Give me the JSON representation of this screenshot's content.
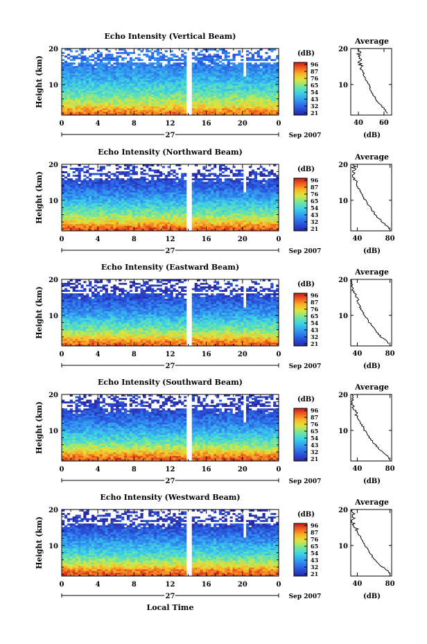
{
  "chart_data": [
    {
      "type": "heatmap",
      "title": "Echo Intensity (Vertical Beam)",
      "ylabel": "Height (km)",
      "x_ticks": [
        "0",
        "4",
        "8",
        "12",
        "16",
        "20",
        "0"
      ],
      "xlim": [
        0,
        24
      ],
      "y_ticks": [
        "10",
        "20"
      ],
      "ylim": [
        1.5,
        20
      ],
      "date_label": "27",
      "month_label": "Sep 2007",
      "colorbar": {
        "unit": "(dB)",
        "ticks": [
          "96",
          "87",
          "76",
          "65",
          "54",
          "43",
          "32",
          "21"
        ]
      },
      "average_profile": {
        "title": "Average",
        "x_ticks": [
          "40",
          "60"
        ],
        "xlim": [
          34,
          66
        ],
        "xlabel": "(dB)",
        "y_ticks": [
          "10",
          "20"
        ],
        "height_km": [
          2,
          3,
          4,
          5,
          6,
          7,
          8,
          9,
          10,
          11,
          12,
          13,
          14,
          15,
          16,
          17,
          18,
          19,
          20
        ],
        "db": [
          63,
          61,
          58,
          55,
          54,
          52,
          50,
          49,
          48,
          46,
          45,
          44,
          43,
          42,
          41,
          41,
          40,
          41,
          40
        ]
      }
    },
    {
      "type": "heatmap",
      "title": "Echo Intensity (Northward Beam)",
      "ylabel": "Height (km)",
      "x_ticks": [
        "0",
        "4",
        "8",
        "12",
        "16",
        "20",
        "0"
      ],
      "xlim": [
        0,
        24
      ],
      "y_ticks": [
        "10",
        "20"
      ],
      "ylim": [
        1.5,
        20
      ],
      "date_label": "27",
      "month_label": "Sep 2007",
      "colorbar": {
        "unit": "(dB)",
        "ticks": [
          "96",
          "87",
          "76",
          "65",
          "54",
          "43",
          "32",
          "21"
        ]
      },
      "average_profile": {
        "title": "Average",
        "x_ticks": [
          "40",
          "80"
        ],
        "xlim": [
          32,
          82
        ],
        "xlabel": "(dB)",
        "y_ticks": [
          "10",
          "20"
        ],
        "height_km": [
          2,
          3,
          4,
          5,
          6,
          7,
          8,
          9,
          10,
          11,
          12,
          13,
          14,
          15,
          16,
          17,
          18,
          19,
          20
        ],
        "db": [
          80,
          76,
          70,
          66,
          62,
          59,
          56,
          53,
          50,
          47,
          45,
          42,
          40,
          38,
          37,
          36,
          35,
          36,
          35
        ]
      }
    },
    {
      "type": "heatmap",
      "title": "Echo Intensity (Eastward Beam)",
      "ylabel": "Height (km)",
      "x_ticks": [
        "0",
        "4",
        "8",
        "12",
        "16",
        "20",
        "0"
      ],
      "xlim": [
        0,
        24
      ],
      "y_ticks": [
        "10",
        "20"
      ],
      "ylim": [
        1.5,
        20
      ],
      "date_label": "27",
      "month_label": "Sep 2007",
      "colorbar": {
        "unit": "(dB)",
        "ticks": [
          "96",
          "87",
          "76",
          "65",
          "54",
          "43",
          "32",
          "21"
        ]
      },
      "average_profile": {
        "title": "Average",
        "x_ticks": [
          "40",
          "80"
        ],
        "xlim": [
          32,
          82
        ],
        "xlabel": "(dB)",
        "y_ticks": [
          "10",
          "20"
        ],
        "height_km": [
          2,
          3,
          4,
          5,
          6,
          7,
          8,
          9,
          10,
          11,
          12,
          13,
          14,
          15,
          16,
          17,
          18,
          19,
          20
        ],
        "db": [
          79,
          75,
          69,
          65,
          61,
          58,
          55,
          52,
          49,
          46,
          44,
          42,
          40,
          38,
          36,
          35,
          34,
          35,
          34
        ]
      }
    },
    {
      "type": "heatmap",
      "title": "Echo Intensity (Southward Beam)",
      "ylabel": "Height (km)",
      "x_ticks": [
        "0",
        "4",
        "8",
        "12",
        "16",
        "20",
        "0"
      ],
      "xlim": [
        0,
        24
      ],
      "y_ticks": [
        "10",
        "20"
      ],
      "ylim": [
        1.5,
        20
      ],
      "date_label": "27",
      "month_label": "Sep 2007",
      "colorbar": {
        "unit": "(dB)",
        "ticks": [
          "96",
          "87",
          "76",
          "65",
          "54",
          "43",
          "32",
          "21"
        ]
      },
      "average_profile": {
        "title": "Average",
        "x_ticks": [
          "40",
          "80"
        ],
        "xlim": [
          32,
          82
        ],
        "xlabel": "(dB)",
        "y_ticks": [
          "10",
          "20"
        ],
        "height_km": [
          2,
          3,
          4,
          5,
          6,
          7,
          8,
          9,
          10,
          11,
          12,
          13,
          14,
          15,
          16,
          17,
          18,
          19,
          20
        ],
        "db": [
          80,
          76,
          71,
          66,
          62,
          58,
          55,
          52,
          49,
          47,
          44,
          42,
          40,
          38,
          36,
          35,
          34,
          35,
          33
        ]
      }
    },
    {
      "type": "heatmap",
      "title": "Echo Intensity (Westward Beam)",
      "ylabel": "Height (km)",
      "x_ticks": [
        "0",
        "4",
        "8",
        "12",
        "16",
        "20",
        "0"
      ],
      "xlim": [
        0,
        24
      ],
      "y_ticks": [
        "10",
        "20"
      ],
      "ylim": [
        1.5,
        20
      ],
      "date_label": "27",
      "month_label": "Sep 2007",
      "xlabel": "Local Time",
      "colorbar": {
        "unit": "(dB)",
        "ticks": [
          "96",
          "87",
          "76",
          "65",
          "54",
          "43",
          "32",
          "21"
        ]
      },
      "average_profile": {
        "title": "Average",
        "x_ticks": [
          "40",
          "80"
        ],
        "xlim": [
          32,
          82
        ],
        "xlabel": "(dB)",
        "y_ticks": [
          "10",
          "20"
        ],
        "height_km": [
          2,
          3,
          4,
          5,
          6,
          7,
          8,
          9,
          10,
          11,
          12,
          13,
          14,
          15,
          16,
          17,
          18,
          19,
          20
        ],
        "db": [
          80,
          77,
          71,
          66,
          62,
          58,
          55,
          52,
          50,
          47,
          45,
          42,
          40,
          38,
          36,
          35,
          34,
          35,
          33
        ]
      }
    }
  ]
}
